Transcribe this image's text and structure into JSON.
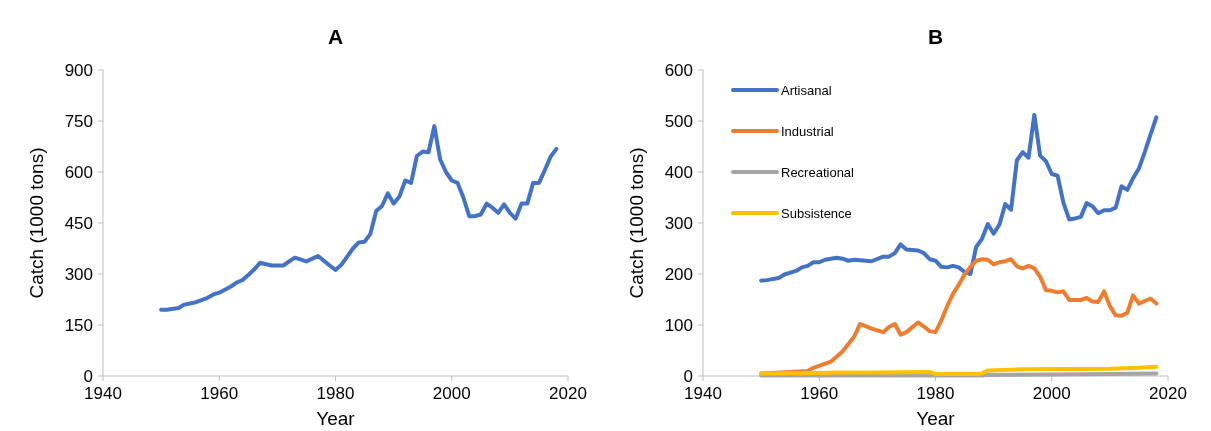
{
  "chart_data": [
    {
      "type": "line",
      "title": "A",
      "xlabel": "Year",
      "ylabel": "Catch (1000 tons)",
      "xlim": [
        1940,
        2020
      ],
      "xticks": [
        1940,
        1960,
        1980,
        2000,
        2020
      ],
      "ylim": [
        0,
        900
      ],
      "yticks": [
        0,
        150,
        300,
        450,
        600,
        750,
        900
      ],
      "grid": false,
      "legend": false,
      "series": [
        {
          "color": "#4472c4",
          "x": [
            1950,
            1951,
            1953,
            1954,
            1956,
            1958,
            1959,
            1960,
            1962,
            1963,
            1964,
            1965,
            1966,
            1967,
            1969,
            1971,
            1973,
            1975,
            1977,
            1979,
            1980,
            1981,
            1983,
            1984,
            1985,
            1986,
            1987,
            1988,
            1989,
            1990,
            1991,
            1992,
            1993,
            1994,
            1995,
            1996,
            1997,
            1998,
            1999,
            2000,
            2001,
            2002,
            2003,
            2004,
            2005,
            2006,
            2007,
            2008,
            2009,
            2010,
            2011,
            2012,
            2013,
            2014,
            2015,
            2016,
            2017,
            2018
          ],
          "values": [
            195,
            195,
            200,
            210,
            217,
            230,
            240,
            245,
            263,
            275,
            282,
            297,
            313,
            333,
            325,
            325,
            348,
            337,
            353,
            325,
            312,
            327,
            375,
            393,
            395,
            418,
            485,
            500,
            537,
            507,
            528,
            575,
            568,
            647,
            660,
            658,
            735,
            637,
            600,
            575,
            568,
            525,
            470,
            470,
            475,
            507,
            495,
            480,
            505,
            480,
            463,
            507,
            507,
            568,
            568,
            605,
            645,
            668
          ]
        }
      ]
    },
    {
      "type": "line",
      "title": "B",
      "xlabel": "Year",
      "ylabel": "Catch (1000 tons)",
      "xlim": [
        1940,
        2020
      ],
      "xticks": [
        1940,
        1960,
        1980,
        2000,
        2020
      ],
      "ylim": [
        0,
        600
      ],
      "yticks": [
        0,
        100,
        200,
        300,
        400,
        500,
        600
      ],
      "grid": false,
      "legend": "top left",
      "series": [
        {
          "name": "Artisanal",
          "color": "#4472c4",
          "x": [
            1950,
            1951,
            1953,
            1954,
            1956,
            1957,
            1958,
            1959,
            1960,
            1961,
            1963,
            1964,
            1965,
            1966,
            1969,
            1971,
            1972,
            1973,
            1974,
            1975,
            1977,
            1978,
            1979,
            1980,
            1981,
            1982,
            1983,
            1984,
            1985,
            1986,
            1987,
            1988,
            1989,
            1990,
            1991,
            1992,
            1993,
            1994,
            1995,
            1996,
            1997,
            1998,
            1999,
            2000,
            2001,
            2002,
            2003,
            2004,
            2005,
            2006,
            2007,
            2008,
            2009,
            2010,
            2011,
            2012,
            2013,
            2014,
            2015,
            2016,
            2017,
            2018
          ],
          "values": [
            187,
            188,
            192,
            199,
            206,
            213,
            216,
            223,
            223,
            228,
            232,
            230,
            226,
            228,
            225,
            234,
            234,
            241,
            258,
            248,
            246,
            241,
            229,
            226,
            214,
            213,
            216,
            213,
            204,
            200,
            253,
            269,
            298,
            279,
            297,
            337,
            326,
            423,
            439,
            428,
            512,
            432,
            421,
            396,
            393,
            340,
            307,
            309,
            312,
            339,
            333,
            319,
            325,
            325,
            330,
            372,
            365,
            388,
            407,
            439,
            474,
            507
          ]
        },
        {
          "name": "Industrial",
          "color": "#ed7d31",
          "x": [
            1950,
            1955,
            1958,
            1959,
            1962,
            1964,
            1966,
            1967,
            1969,
            1971,
            1972,
            1973,
            1974,
            1975,
            1977,
            1978,
            1979,
            1980,
            1981,
            1982,
            1983,
            1984,
            1985,
            1986,
            1987,
            1988,
            1989,
            1990,
            1991,
            1992,
            1993,
            1994,
            1995,
            1996,
            1997,
            1998,
            1999,
            2000,
            2001,
            2002,
            2003,
            2005,
            2006,
            2007,
            2008,
            2009,
            2010,
            2011,
            2012,
            2013,
            2014,
            2015,
            2016,
            2017,
            2018
          ],
          "values": [
            5,
            8,
            10,
            16,
            28,
            48,
            77,
            102,
            93,
            86,
            96,
            102,
            81,
            86,
            105,
            97,
            88,
            86,
            109,
            137,
            161,
            179,
            199,
            214,
            226,
            229,
            228,
            219,
            223,
            225,
            229,
            215,
            211,
            216,
            211,
            195,
            168,
            167,
            164,
            166,
            149,
            149,
            153,
            146,
            145,
            166,
            137,
            119,
            118,
            124,
            158,
            142,
            147,
            152,
            142
          ]
        },
        {
          "name": "Recreational",
          "color": "#a5a5a5",
          "x": [
            1950,
            1988,
            1989,
            2000,
            2010,
            2018
          ],
          "values": [
            1,
            1,
            2,
            3,
            4,
            5
          ]
        },
        {
          "name": "Subsistence",
          "color": "#ffc000",
          "x": [
            1950,
            1960,
            1963,
            1970,
            1979,
            1980,
            1987,
            1988,
            1989,
            1995,
            2010,
            2015,
            2018
          ],
          "values": [
            5,
            6,
            7,
            7,
            8,
            4,
            4,
            5,
            11,
            13,
            14,
            16,
            18
          ]
        }
      ]
    }
  ]
}
